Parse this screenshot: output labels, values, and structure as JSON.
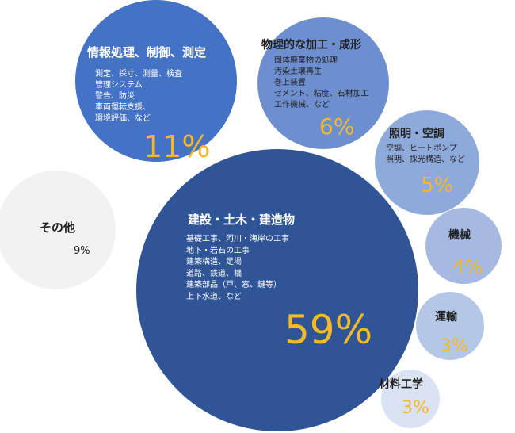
{
  "chart_data": {
    "type": "bubble",
    "series": [
      {
        "name": "情報処理、制御、測定",
        "value": 11,
        "label": "11%",
        "color": "#4472c4",
        "items": [
          "測定、採寸、測量、検査",
          "管理システム",
          "警告、防災",
          "車両運転支援、",
          "環境評価、など"
        ]
      },
      {
        "name": "物理的な加工・成形",
        "value": 6,
        "label": "6%",
        "color": "#6e8fcf",
        "items": [
          "固体廃棄物の処理",
          "汚染土壌再生",
          "巻上装置",
          "セメント、粘度、石材加工",
          "工作機械、など"
        ]
      },
      {
        "name": "照明・空調",
        "value": 5,
        "label": "5%",
        "color": "#8eaadb",
        "items": [
          "空調、ヒートポンプ",
          "照明、採光構造、など"
        ]
      },
      {
        "name": "その他",
        "value": 9,
        "label": "9%",
        "color": "#f2f2f2",
        "items": []
      },
      {
        "name": "建設・土木・建造物",
        "value": 59,
        "label": "59%",
        "color": "#2f5597",
        "items": [
          "基礎工事、河川・海岸の工事",
          "地下・岩石の工事",
          "建築構造、足場",
          "道路、鉄道、橋",
          "建築部品（戸、窓、鍵等）",
          "上下水道、など"
        ]
      },
      {
        "name": "機械",
        "value": 4,
        "label": "4%",
        "color": "#a5b9e3",
        "items": []
      },
      {
        "name": "運輸",
        "value": 3,
        "label": "3%",
        "color": "#b4c7e7",
        "items": []
      },
      {
        "name": "材料工学",
        "value": 3,
        "label": "3%",
        "color": "#dae3f3",
        "items": []
      }
    ],
    "colors": {
      "percent_gold": "#f4b92a",
      "white": "#ffffff",
      "dark": "#222222"
    }
  }
}
